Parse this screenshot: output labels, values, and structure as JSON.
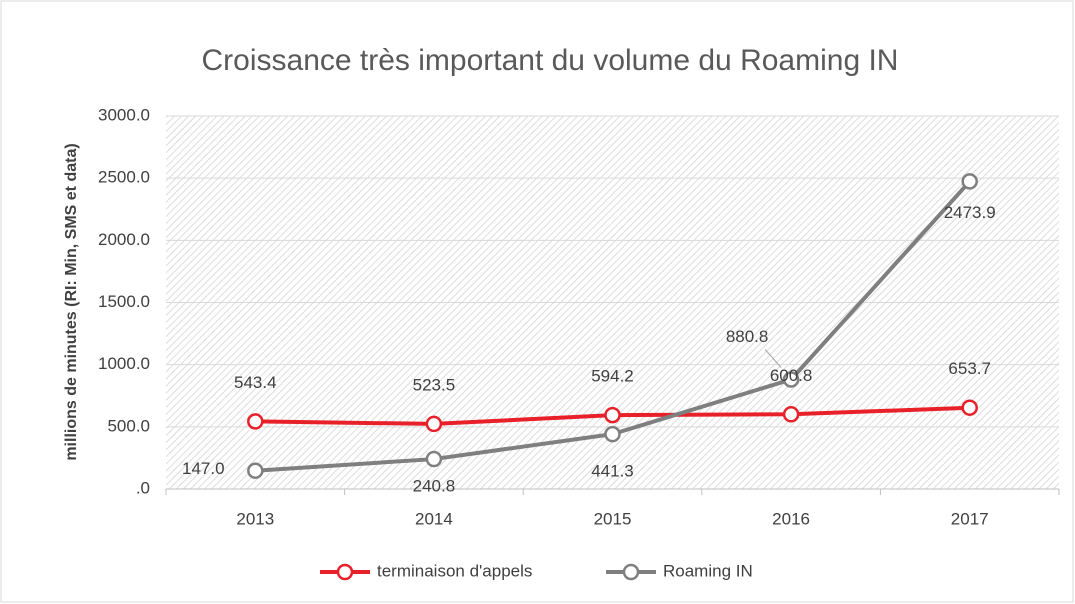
{
  "chart_data": {
    "type": "line",
    "title": "Croissance très important du volume du Roaming IN",
    "y_label": "millions de minutes (RI: Min, SMS et data)",
    "categories": [
      "2013",
      "2014",
      "2015",
      "2016",
      "2017"
    ],
    "series": [
      {
        "name": "terminaison d'appels",
        "color": "#e8202a",
        "values": [
          543.4,
          523.5,
          594.2,
          600.8,
          653.7
        ],
        "value_labels": [
          "543.4",
          "523.5",
          "594.2",
          "600.8",
          "653.7"
        ]
      },
      {
        "name": "Roaming IN",
        "color": "#7f7f7f",
        "values": [
          147.0,
          240.8,
          441.3,
          880.8,
          2473.9
        ],
        "value_labels": [
          "147.0",
          "240.8",
          "441.3",
          "880.8",
          "2473.9"
        ]
      }
    ],
    "ylim": [
      0,
      3000
    ],
    "yticks": [
      {
        "value": 0,
        "label": ".0"
      },
      {
        "value": 500,
        "label": "500.0"
      },
      {
        "value": 1000,
        "label": "1000.0"
      },
      {
        "value": 1500,
        "label": "1500.0"
      },
      {
        "value": 2000,
        "label": "2000.0"
      },
      {
        "value": 2500,
        "label": "2500.0"
      },
      {
        "value": 3000,
        "label": "3000.0"
      }
    ],
    "grid": true,
    "legend": "bottom"
  }
}
